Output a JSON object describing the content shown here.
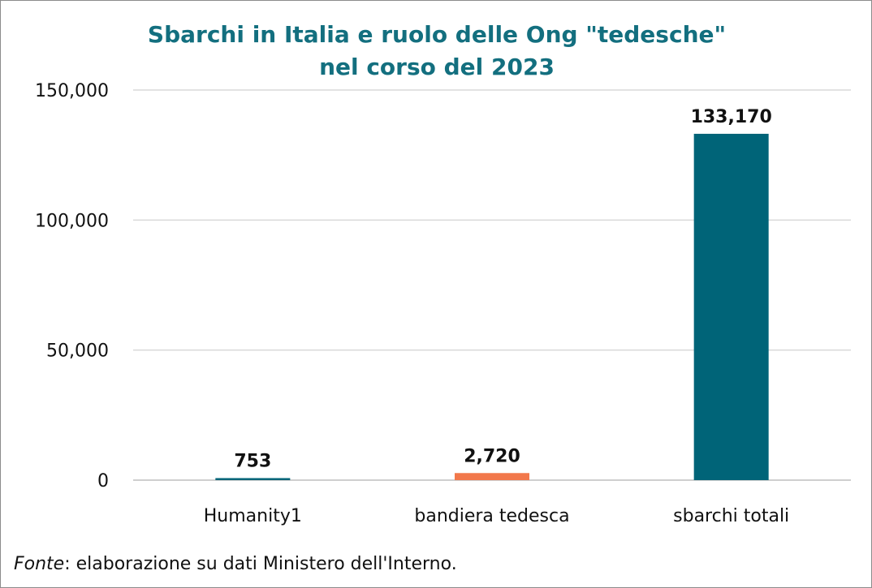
{
  "chart_data": {
    "type": "bar",
    "title_lines": [
      "Sbarchi in Italia e ruolo delle Ong \"tedesche\"",
      "nel corso del 2023"
    ],
    "categories": [
      "Humanity1",
      "bandiera tedesca",
      "sbarchi totali"
    ],
    "values": [
      753,
      2720,
      133170
    ],
    "value_labels": [
      "753",
      "2,720",
      "133,170"
    ],
    "bar_colors": [
      "#006478",
      "#f2784b",
      "#006478"
    ],
    "y_ticks": [
      0,
      50000,
      100000,
      150000
    ],
    "y_tick_labels": [
      "0",
      "50,000",
      "100,000",
      "150,000"
    ],
    "ylim": [
      0,
      150000
    ],
    "grid": true,
    "legend": "none"
  },
  "source": {
    "prefix": "Fonte",
    "text": ": elaborazione su dati Ministero dell'Interno."
  },
  "colors": {
    "title": "#136f7f",
    "gridline": "#d9d9d9",
    "axis": "#bfbfbf"
  }
}
